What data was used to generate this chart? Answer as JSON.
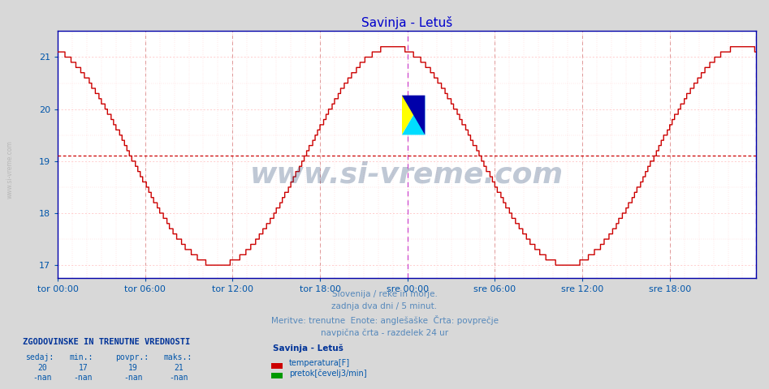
{
  "title": "Savinja - Letuš",
  "title_color": "#0000cc",
  "bg_color": "#d8d8d8",
  "plot_bg_color": "#ffffff",
  "line_color": "#cc0000",
  "avg_value": 19.1,
  "ylim_low": 16.75,
  "ylim_high": 21.5,
  "yticks": [
    17,
    18,
    19,
    20,
    21
  ],
  "grid_color": "#ffbbbb",
  "num_points": 576,
  "subtitle_lines": [
    "Slovenija / reke in morje.",
    "zadnja dva dni / 5 minut.",
    "Meritve: trenutne  Enote: anglešaške  Črta: povprečje",
    "navpična črta - razdelek 24 ur"
  ],
  "subtitle_color": "#5588bb",
  "watermark_text": "www.si-vreme.com",
  "watermark_color": "#1a3a6a",
  "stats_header": "ZGODOVINSKE IN TRENUTNE VREDNOSTI",
  "stats_header_color": "#003399",
  "stats_col_labels": [
    "sedaj:",
    "min.:",
    "povpr.:",
    "maks.:"
  ],
  "stats_values_temp": [
    "20",
    "17",
    "19",
    "21"
  ],
  "stats_values_flow": [
    "-nan",
    "-nan",
    "-nan",
    "-nan"
  ],
  "legend_title": "Savinja - Letuš",
  "legend_temp_label": "temperatura[F]",
  "legend_flow_label": "pretok[čevelj3/min]",
  "legend_temp_color": "#cc0000",
  "legend_flow_color": "#009900",
  "xtick_labels": [
    "tor 00:00",
    "tor 06:00",
    "tor 12:00",
    "tor 18:00",
    "sre 00:00",
    "sre 06:00",
    "sre 12:00",
    "sre 18:00"
  ],
  "xtick_positions": [
    0,
    72,
    144,
    216,
    288,
    360,
    432,
    504
  ],
  "vline_color_regular": "#dd9999",
  "vline_color_24h": "#cc44cc",
  "axis_color": "#0000aa",
  "tick_label_color": "#0055aa",
  "left_label_color": "#aaaaaa",
  "logo_yellow": "#ffff00",
  "logo_cyan": "#00ddff",
  "logo_blue": "#0000aa"
}
